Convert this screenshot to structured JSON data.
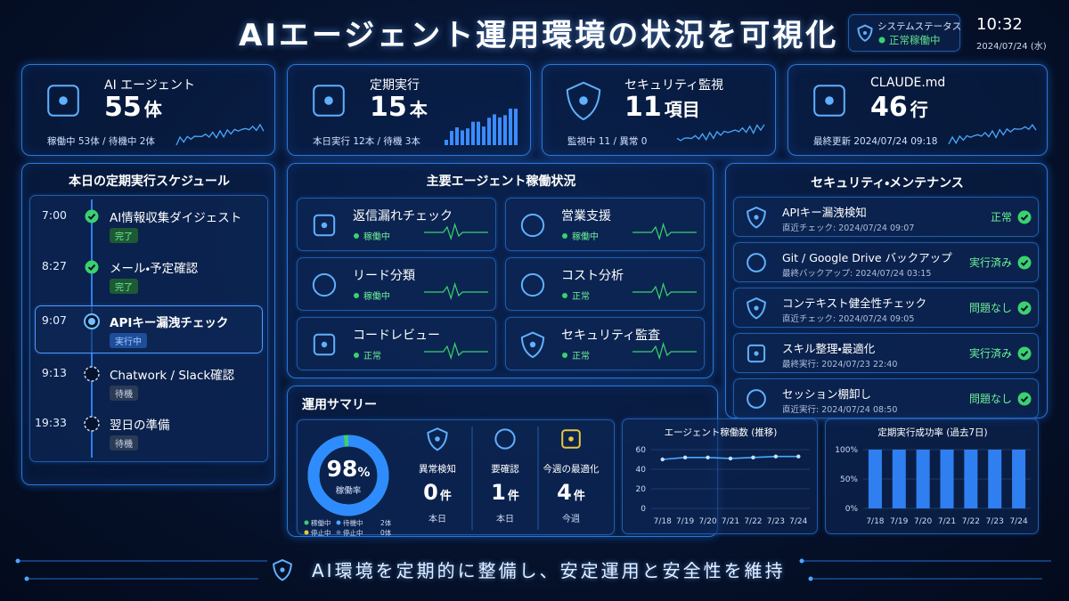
{
  "header": {
    "title": "AIエージェント運用環境の状況を可視化",
    "status_label": "システムステータス",
    "status_value": "正常稼働中",
    "time": "10:32",
    "date": "2024/07/24 (水)"
  },
  "kpis": [
    {
      "label": "AI エージェント",
      "value": 55,
      "unit": "体",
      "sub": "稼働中 53体 / 待機中 2体"
    },
    {
      "label": "定期実行",
      "value": 15,
      "unit": "本",
      "sub": "本日実行 12本 / 待機 3本"
    },
    {
      "label": "セキュリティ監視",
      "value": 11,
      "unit": "項目",
      "sub": "監視中 11 / 異常 0"
    },
    {
      "label": "CLAUDE.md",
      "value": 46,
      "unit": "行",
      "sub": "最終更新 2024/07/24 09:18"
    }
  ],
  "schedule": {
    "title": "本日の定期実行スケジュール",
    "items": [
      {
        "time": "7:00",
        "task": "AI情報収集ダイジェスト",
        "status": "完了"
      },
      {
        "time": "8:27",
        "task": "メール・予定確認",
        "status": "完了"
      },
      {
        "time": "9:07",
        "task": "APIキー漏洩チェック",
        "status": "実行中"
      },
      {
        "time": "9:13",
        "task": "Chatwork / Slack確認",
        "status": "待機"
      },
      {
        "time": "19:33",
        "task": "翌日の準備",
        "status": "待機"
      }
    ]
  },
  "agents": {
    "title": "主要エージェント稼働状況",
    "items": [
      {
        "name": "返信漏れチェック",
        "status": "稼働中"
      },
      {
        "name": "営業支援",
        "status": "稼働中"
      },
      {
        "name": "リード分類",
        "status": "稼働中"
      },
      {
        "name": "コスト分析",
        "status": "正常"
      },
      {
        "name": "コードレビュー",
        "status": "正常"
      },
      {
        "name": "セキュリティ監査",
        "status": "正常"
      }
    ]
  },
  "security": {
    "title": "セキュリティ・メンテナンス",
    "items": [
      {
        "name": "APIキー漏洩検知",
        "detail": "直近チェック: 2024/07/24 09:07",
        "status": "正常"
      },
      {
        "name": "Git / Google Drive バックアップ",
        "detail": "最終バックアップ: 2024/07/24 03:15",
        "status": "実行済み"
      },
      {
        "name": "コンテキスト健全性チェック",
        "detail": "直近チェック: 2024/07/24 09:05",
        "status": "問題なし"
      },
      {
        "name": "スキル整理・最適化",
        "detail": "最終実行: 2024/07/23 22:40",
        "status": "実行済み"
      },
      {
        "name": "セッション棚卸し",
        "detail": "直近実行: 2024/07/24 08:50",
        "status": "問題なし"
      }
    ]
  },
  "summary": {
    "title": "運用サマリー",
    "donut": {
      "value": 98,
      "unit": "%",
      "label": "稼働率",
      "legend": [
        {
          "name": "稼働中",
          "color": "#3bd16f"
        },
        {
          "name": "待機中",
          "count": "2体",
          "color": "#4aa8ff"
        },
        {
          "name": "停止中",
          "color": "#e8c840"
        },
        {
          "name": "停止中",
          "count": "0体",
          "color": "#4a6a9a"
        }
      ]
    },
    "stats": [
      {
        "label": "異常検知",
        "value": 0,
        "unit": "件",
        "sub": "本日"
      },
      {
        "label": "要確認",
        "value": 1,
        "unit": "件",
        "sub": "本日"
      },
      {
        "label": "今週の最適化",
        "value": 4,
        "unit": "件",
        "sub": "今週"
      }
    ]
  },
  "charts": [
    {
      "type": "line",
      "title": "エージェント稼働数 (推移)",
      "categories": [
        "7/18",
        "7/19",
        "7/20",
        "7/21",
        "7/22",
        "7/23",
        "7/24"
      ],
      "values": [
        50,
        52,
        52,
        51,
        52,
        53,
        53
      ],
      "ylim": [
        0,
        60
      ],
      "yticks": [
        0,
        20,
        40,
        60
      ],
      "color": "#4aa8ff"
    },
    {
      "type": "bar",
      "title": "定期実行成功率 (過去7日)",
      "categories": [
        "7/18",
        "7/19",
        "7/20",
        "7/21",
        "7/22",
        "7/23",
        "7/24"
      ],
      "values": [
        100,
        100,
        100,
        100,
        100,
        100,
        100
      ],
      "ylim": [
        0,
        100
      ],
      "yticks": [
        {
          "value": 0,
          "label": "0%"
        },
        {
          "value": 50,
          "label": "50%"
        },
        {
          "value": 100,
          "label": "100%"
        }
      ],
      "color": "#2f7ff0"
    }
  ],
  "footer": "AI環境を定期的に整備し、安定運用と安全性を維持"
}
